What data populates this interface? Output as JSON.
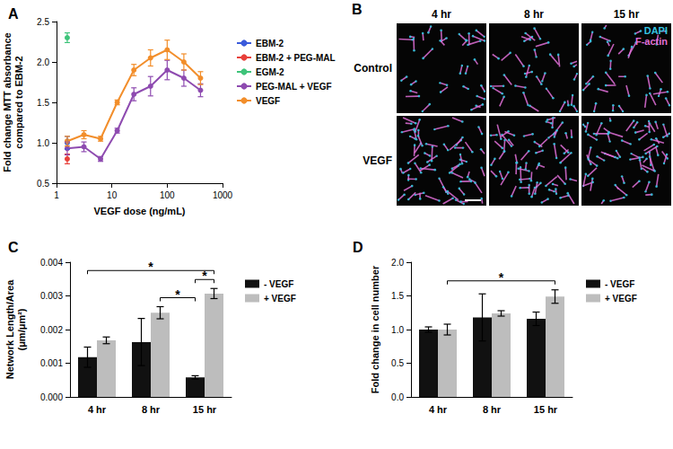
{
  "chart_data": [
    {
      "type": "line",
      "title": "A",
      "xlabel": "VEGF dose (ng/mL)",
      "ylabel": "Fold change MTT absorbance\ncompared to EBM-2",
      "log": "x",
      "grid": false,
      "legend": "right",
      "marker": "circle",
      "xlim": [
        1,
        1000
      ],
      "xticks": [
        1,
        10,
        100,
        1000
      ],
      "ylim": [
        0.5,
        2.5
      ],
      "yticks": [
        {
          "value": 0.5,
          "label": "0.5"
        },
        {
          "value": 1,
          "label": "1.0"
        },
        {
          "value": 1.5,
          "label": "1.5"
        },
        {
          "value": 2,
          "label": "2.0"
        },
        {
          "value": 2.5,
          "label": "2.5"
        }
      ],
      "series": [
        {
          "name": "EBM-2",
          "color": "#3b5bdb",
          "x": [
            1.5625
          ],
          "values": [
            1.0
          ],
          "errors": [
            0.08
          ]
        },
        {
          "name": "EBM-2 + PEG-MAL",
          "color": "#e8403a",
          "x": [
            1.5625
          ],
          "values": [
            0.8
          ],
          "errors": [
            0.06
          ]
        },
        {
          "name": "EGM-2",
          "color": "#3ec47a",
          "x": [
            1.5625
          ],
          "values": [
            2.3
          ],
          "errors": [
            0.06
          ]
        },
        {
          "name": "PEG-MAL + VEGF",
          "color": "#8e4bb0",
          "x": [
            1.5625,
            3.125,
            6.25,
            12.5,
            25,
            50,
            100,
            200,
            400
          ],
          "values": [
            0.93,
            0.95,
            0.8,
            1.15,
            1.6,
            1.7,
            1.9,
            1.8,
            1.65
          ],
          "errors": [
            0.08,
            0.06,
            0.03,
            0.03,
            0.08,
            0.12,
            0.12,
            0.1,
            0.08
          ]
        },
        {
          "name": "VEGF",
          "color": "#f28e2b",
          "x": [
            1.5625,
            3.125,
            6.25,
            12.5,
            25,
            50,
            100,
            200,
            400
          ],
          "values": [
            1.02,
            1.1,
            1.05,
            1.5,
            1.9,
            2.05,
            2.15,
            2.0,
            1.8
          ],
          "errors": [
            0.06,
            0.05,
            0.03,
            0.03,
            0.07,
            0.1,
            0.12,
            0.1,
            0.08
          ]
        }
      ]
    },
    {
      "type": "bar",
      "title": "C",
      "ylabel": "Network Length/Area\n(μm/μm²)",
      "grid": false,
      "legend": "right",
      "categories": [
        "4 hr",
        "8 hr",
        "15 hr"
      ],
      "ylim": [
        0,
        0.004
      ],
      "yticks": [
        {
          "value": 0,
          "label": "0.000"
        },
        {
          "value": 0.001,
          "label": "0.001"
        },
        {
          "value": 0.002,
          "label": "0.002"
        },
        {
          "value": 0.003,
          "label": "0.003"
        },
        {
          "value": 0.004,
          "label": "0.004"
        }
      ],
      "series": [
        {
          "name": "- VEGF",
          "color": "#111111",
          "values": [
            0.00118,
            0.00163,
            0.00058
          ],
          "errors": [
            0.0003,
            0.0007,
            5e-05
          ]
        },
        {
          "name": "+ VEGF",
          "color": "#bdbdbd",
          "values": [
            0.00168,
            0.0025,
            0.00307
          ],
          "errors": [
            0.0001,
            0.00018,
            0.00015
          ]
        }
      ],
      "annotations": [
        {
          "from": {
            "category": "4 hr",
            "series": "- VEGF"
          },
          "to": {
            "category": "15 hr",
            "series": "+ VEGF"
          },
          "label": "*"
        },
        {
          "from": {
            "category": "8 hr",
            "series": "+ VEGF"
          },
          "to": {
            "category": "15 hr",
            "series": "- VEGF"
          },
          "label": "*"
        },
        {
          "from": {
            "category": "15 hr",
            "series": "- VEGF"
          },
          "to": {
            "category": "15 hr",
            "series": "+ VEGF"
          },
          "label": "*"
        }
      ]
    },
    {
      "type": "bar",
      "title": "D",
      "ylabel": "Fold change in cell number",
      "grid": false,
      "legend": "right",
      "categories": [
        "4 hr",
        "8 hr",
        "15 hr"
      ],
      "ylim": [
        0,
        2
      ],
      "yticks": [
        {
          "value": 0,
          "label": "0.0"
        },
        {
          "value": 0.5,
          "label": "0.5"
        },
        {
          "value": 1,
          "label": "1.0"
        },
        {
          "value": 1.5,
          "label": "1.5"
        },
        {
          "value": 2,
          "label": "2.0"
        }
      ],
      "series": [
        {
          "name": "- VEGF",
          "color": "#111111",
          "values": [
            1.0,
            1.18,
            1.16
          ],
          "errors": [
            0.04,
            0.35,
            0.1
          ]
        },
        {
          "name": "+ VEGF",
          "color": "#bdbdbd",
          "values": [
            1.0,
            1.24,
            1.49
          ],
          "errors": [
            0.08,
            0.04,
            0.1
          ]
        }
      ],
      "annotations": [
        {
          "from": {
            "category": "4 hr",
            "series": "+ VEGF"
          },
          "to": {
            "category": "15 hr",
            "series": "+ VEGF"
          },
          "label": "*"
        }
      ]
    }
  ],
  "image_panel": {
    "title": "B",
    "columns": [
      "4 hr",
      "8 hr",
      "15 hr"
    ],
    "rows": [
      "Control",
      "VEGF"
    ],
    "channels": [
      {
        "name": "DAPI",
        "color": "#35c4e0"
      },
      {
        "name": "F-actin",
        "color": "#e070d8"
      }
    ]
  }
}
